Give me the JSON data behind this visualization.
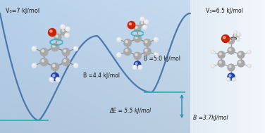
{
  "bg_color_left": "#b8d0e8",
  "bg_color_right": "#d8e8f4",
  "bg_color_far_right": "#e4eef6",
  "curve_color": "#4a7aad",
  "curve_linewidth": 1.6,
  "teal_color": "#30b0b8",
  "arrow_color": "#3090b0",
  "label_V3_left": "V₃=7 kJ/mol",
  "label_V3_right": "V₃=6.5 kJ/mol",
  "label_B_left": "B =4.4 kJ/mol",
  "label_B_mid": "B =5.0 kJ/mol",
  "label_B_right": "B =3.7kJ/mol",
  "label_dE": "ΔE = 5.5 kJ/mol",
  "text_color": "#1a1a1a",
  "atom_grey": "#a8a8a8",
  "atom_grey_dark": "#888888",
  "atom_white": "#e8e8e8",
  "atom_red": "#cc2200",
  "atom_blue": "#2244aa",
  "atom_blue_dark": "#1a3388",
  "figsize": [
    3.76,
    1.89
  ],
  "dpi": 100
}
